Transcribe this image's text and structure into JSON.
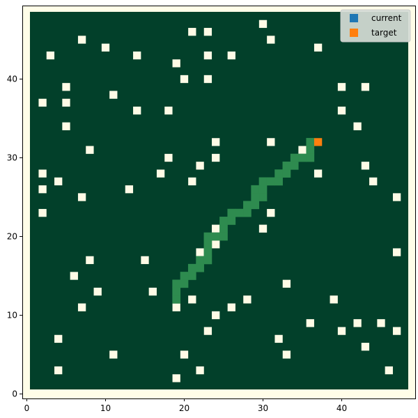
{
  "chart_data": {
    "type": "heatmap",
    "title": "",
    "xlabel": "",
    "ylabel": "",
    "grid_size": 48,
    "xlim": [
      -0.5,
      49
    ],
    "ylim": [
      -0.5,
      49
    ],
    "xticks": [
      0,
      10,
      20,
      30,
      40
    ],
    "yticks": [
      0,
      10,
      20,
      30,
      40
    ],
    "grid": false,
    "legend_position": "top-right",
    "colors": {
      "background": "#fffde8",
      "free": "#02402a",
      "obstacle": "#fffbe6",
      "path": "#2e8b4f",
      "current": "#1f77b4",
      "target": "#ff7f0e",
      "legend_bg": "#d6dcd6"
    },
    "legend": [
      {
        "label": "current",
        "color": "#1f77b4"
      },
      {
        "label": "target",
        "color": "#ff7f0e"
      }
    ],
    "target": [
      37,
      32
    ],
    "obstacles": [
      [
        30,
        47
      ],
      [
        21,
        46
      ],
      [
        23,
        46
      ],
      [
        7,
        45
      ],
      [
        31,
        45
      ],
      [
        10,
        44
      ],
      [
        37,
        44
      ],
      [
        3,
        43
      ],
      [
        14,
        43
      ],
      [
        23,
        43
      ],
      [
        26,
        43
      ],
      [
        19,
        42
      ],
      [
        20,
        40
      ],
      [
        23,
        40
      ],
      [
        5,
        39
      ],
      [
        40,
        39
      ],
      [
        43,
        39
      ],
      [
        11,
        38
      ],
      [
        2,
        37
      ],
      [
        5,
        37
      ],
      [
        14,
        36
      ],
      [
        18,
        36
      ],
      [
        40,
        36
      ],
      [
        5,
        34
      ],
      [
        42,
        34
      ],
      [
        24,
        32
      ],
      [
        31,
        32
      ],
      [
        8,
        31
      ],
      [
        35,
        31
      ],
      [
        18,
        30
      ],
      [
        24,
        30
      ],
      [
        22,
        29
      ],
      [
        43,
        29
      ],
      [
        2,
        28
      ],
      [
        17,
        28
      ],
      [
        37,
        28
      ],
      [
        4,
        27
      ],
      [
        21,
        27
      ],
      [
        44,
        27
      ],
      [
        2,
        26
      ],
      [
        13,
        26
      ],
      [
        29,
        26
      ],
      [
        7,
        25
      ],
      [
        47,
        25
      ],
      [
        2,
        23
      ],
      [
        31,
        23
      ],
      [
        24,
        21
      ],
      [
        30,
        21
      ],
      [
        24,
        19
      ],
      [
        22,
        18
      ],
      [
        47,
        18
      ],
      [
        8,
        17
      ],
      [
        15,
        17
      ],
      [
        6,
        15
      ],
      [
        33,
        14
      ],
      [
        9,
        13
      ],
      [
        16,
        13
      ],
      [
        21,
        12
      ],
      [
        28,
        12
      ],
      [
        39,
        12
      ],
      [
        7,
        11
      ],
      [
        19,
        11
      ],
      [
        26,
        11
      ],
      [
        24,
        10
      ],
      [
        36,
        9
      ],
      [
        42,
        9
      ],
      [
        45,
        9
      ],
      [
        23,
        8
      ],
      [
        40,
        8
      ],
      [
        47,
        8
      ],
      [
        4,
        7
      ],
      [
        32,
        7
      ],
      [
        43,
        6
      ],
      [
        11,
        5
      ],
      [
        20,
        5
      ],
      [
        33,
        5
      ],
      [
        4,
        3
      ],
      [
        22,
        3
      ],
      [
        46,
        3
      ],
      [
        19,
        2
      ]
    ],
    "path": [
      [
        36,
        32
      ],
      [
        36,
        31
      ],
      [
        34,
        30
      ],
      [
        35,
        30
      ],
      [
        36,
        30
      ],
      [
        33,
        29
      ],
      [
        34,
        29
      ],
      [
        32,
        28
      ],
      [
        33,
        28
      ],
      [
        30,
        27
      ],
      [
        31,
        27
      ],
      [
        32,
        27
      ],
      [
        29,
        26
      ],
      [
        30,
        26
      ],
      [
        30,
        25
      ],
      [
        29,
        25
      ],
      [
        28,
        24
      ],
      [
        29,
        24
      ],
      [
        26,
        23
      ],
      [
        27,
        23
      ],
      [
        28,
        23
      ],
      [
        25,
        22
      ],
      [
        26,
        22
      ],
      [
        25,
        21
      ],
      [
        23,
        20
      ],
      [
        24,
        20
      ],
      [
        25,
        20
      ],
      [
        23,
        19
      ],
      [
        23,
        18
      ],
      [
        22,
        17
      ],
      [
        23,
        17
      ],
      [
        22,
        16
      ],
      [
        21,
        16
      ],
      [
        21,
        15
      ],
      [
        20,
        15
      ],
      [
        19,
        14
      ],
      [
        20,
        14
      ],
      [
        19,
        13
      ],
      [
        19,
        12
      ]
    ]
  }
}
